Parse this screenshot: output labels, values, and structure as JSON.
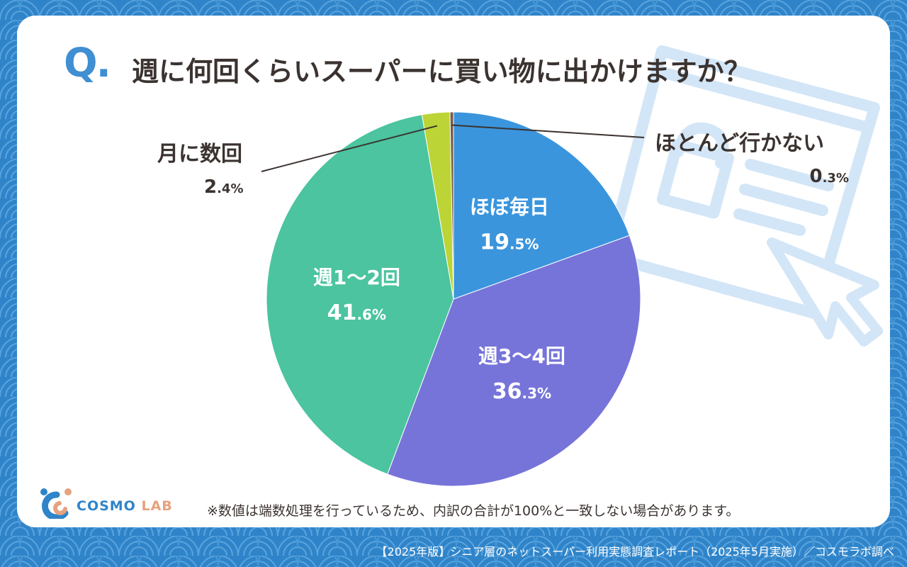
{
  "question_mark": "Q.",
  "title": "週に何回くらいスーパーに買い物に出かけますか？",
  "footnote": "※数値は端数処理を行っているため、内訳の合計が100%と一致しない場合があります。",
  "source": "【2025年版】シニア層のネットスーパー利用実態調査レポート（2025年5月実施）／コスモラボ調べ",
  "logo": {
    "name": "COSMO",
    "suffix": "LAB"
  },
  "colors": {
    "background": "#2f84c9",
    "accent": "#3f8fd2",
    "text": "#3b3330"
  },
  "chart_data": {
    "type": "pie",
    "title": "週に何回くらいスーパーに買い物に出かけますか？",
    "categories": [
      "ほぼ毎日",
      "週3〜4回",
      "週1〜2回",
      "月に数回",
      "ほとんど行かない"
    ],
    "values": [
      19.5,
      36.3,
      41.6,
      2.4,
      0.3
    ],
    "unit": "%",
    "colors": [
      "#3a95dd",
      "#7674d9",
      "#4bc49f",
      "#bcd435",
      "#7b5a45"
    ],
    "label_placement": [
      "inside",
      "inside",
      "inside",
      "outside-left",
      "outside-right"
    ]
  }
}
